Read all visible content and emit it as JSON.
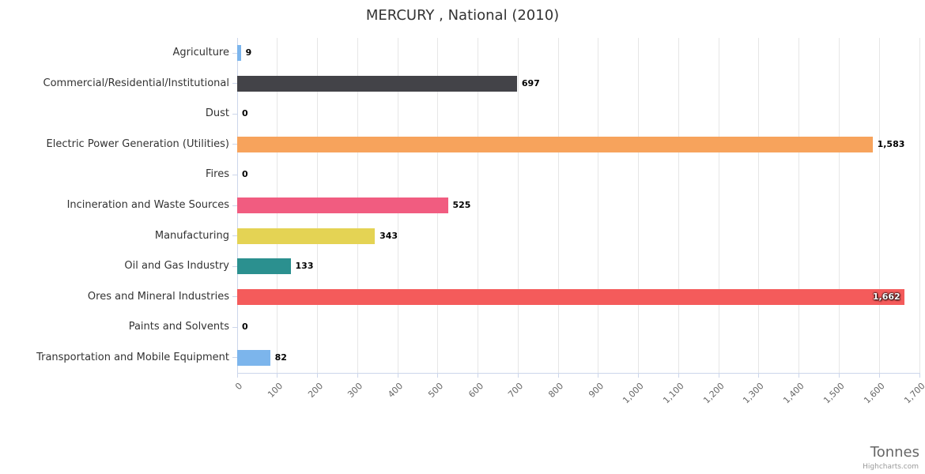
{
  "title": "MERCURY , National (2010)",
  "credits": "Highcharts.com",
  "chart_data": {
    "type": "bar",
    "title": "MERCURY , National (2010)",
    "orientation": "horizontal",
    "categories": [
      "Agriculture",
      "Commercial/Residential/Institutional",
      "Dust",
      "Electric Power Generation (Utilities)",
      "Fires",
      "Incineration and Waste Sources",
      "Manufacturing",
      "Oil and Gas Industry",
      "Ores and Mineral Industries",
      "Paints and Solvents",
      "Transportation and Mobile Equipment"
    ],
    "values": [
      9,
      697,
      0,
      1583,
      0,
      525,
      343,
      133,
      1662,
      0,
      82
    ],
    "value_labels": [
      "9",
      "697",
      "0",
      "1,583",
      "0",
      "525",
      "343",
      "133",
      "1,662",
      "0",
      "82"
    ],
    "bar_colors": [
      "#7cb5ec",
      "#434348",
      "#90ed7d",
      "#f7a35c",
      "#8085e9",
      "#f15c80",
      "#e4d354",
      "#2b908f",
      "#f45b5b",
      "#91e8e1",
      "#7cb5ec"
    ],
    "xlabel": "Tonnes",
    "ylabel": "",
    "axis_range": [
      0,
      1700
    ],
    "tick_interval": 100,
    "tick_labels": [
      "0",
      "100",
      "200",
      "300",
      "400",
      "500",
      "600",
      "700",
      "800",
      "900",
      "1,000",
      "1,100",
      "1,200",
      "1,300",
      "1,400",
      "1,500",
      "1,600",
      "1,700"
    ],
    "grid": true,
    "legend": "none",
    "colors": {
      "grid": "#e6e6e6",
      "axis": "#ccd6eb",
      "title_text": "#333333",
      "label_text": "#666666"
    }
  }
}
